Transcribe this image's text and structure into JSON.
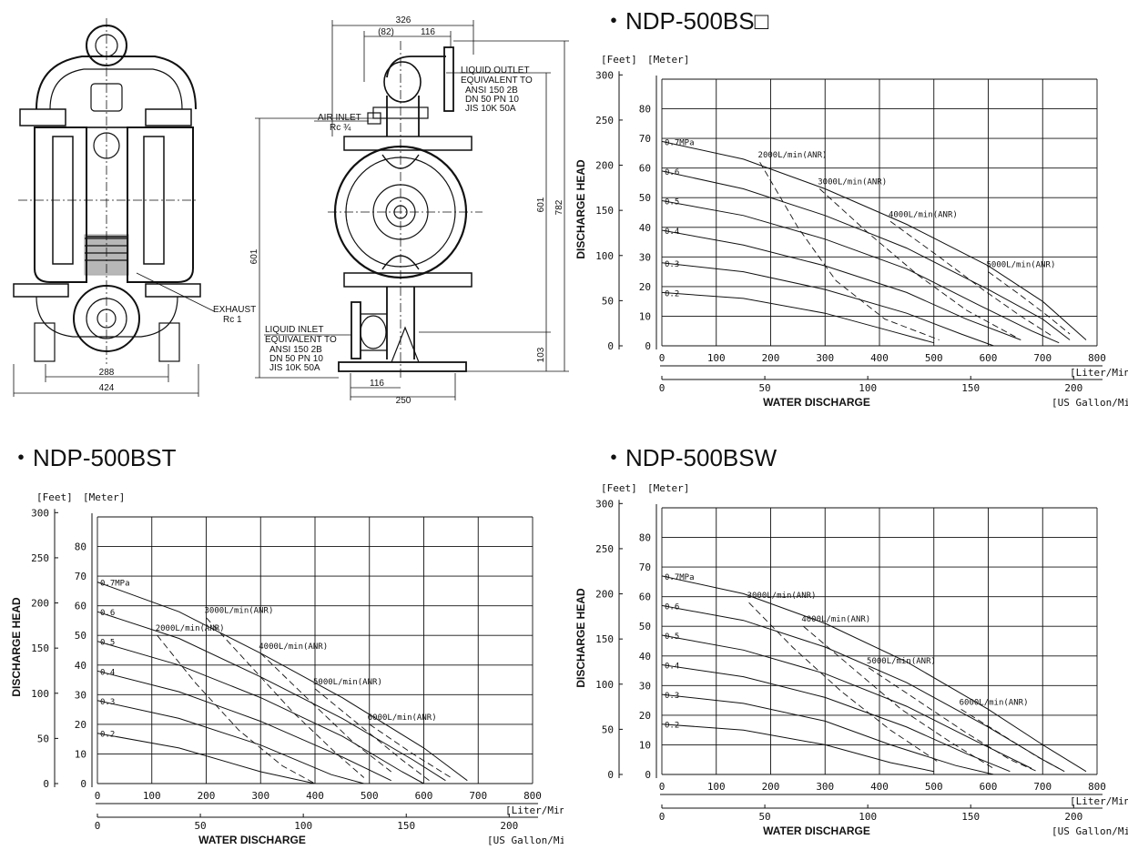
{
  "titles": {
    "bs": "・NDP-500BS□",
    "bst": "・NDP-500BST",
    "bsw": "・NDP-500BSW"
  },
  "drawing": {
    "front": {
      "dim_288": "288",
      "dim_424": "424"
    },
    "side": {
      "dim_326": "326",
      "dim_82": "(82)",
      "dim_116_top": "116",
      "dim_601_left": "601",
      "dim_601_right": "601",
      "dim_782": "782",
      "dim_103": "103",
      "dim_116_bottom": "116",
      "dim_250": "250",
      "air_inlet": "AIR INLET",
      "air_inlet_size": "Rc ¾",
      "exhaust": "EXHAUST",
      "exhaust_size": "Rc 1",
      "outlet": [
        "LIQUID OUTLET",
        "EQUIVALENT TO",
        "ANSI 150 2B",
        "DN 50 PN 10",
        "JIS 10K 50A"
      ],
      "inlet": [
        "LIQUID INLET",
        "EQUIVALENT TO",
        "ANSI 150 2B",
        "DN 50 PN 10",
        "JIS 10K 50A"
      ]
    }
  },
  "common": {
    "feet": "[Feet]",
    "meter": "[Meter]",
    "ylabel": "DISCHARGE HEAD",
    "xlabel": "WATER DISCHARGE",
    "liter_unit": "[Liter/Min]",
    "gallon_unit": "[US Gallon/Min]",
    "feet_ticks": [
      "300",
      "250",
      "200",
      "150",
      "100",
      "50",
      "0"
    ],
    "meter_ticks": [
      "80",
      "70",
      "60",
      "50",
      "40",
      "30",
      "20",
      "10",
      "0"
    ],
    "liter_ticks": [
      "0",
      "100",
      "200",
      "300",
      "400",
      "500",
      "600",
      "700",
      "800"
    ],
    "gallon_ticks": [
      "0",
      "50",
      "100",
      "150",
      "200"
    ]
  },
  "chart_data": [
    {
      "type": "line",
      "title": "NDP-500BS□",
      "xlabel": "WATER DISCHARGE",
      "ylabel": "DISCHARGE HEAD",
      "x_unit": "Liter/Min",
      "y_unit": "Meter",
      "xlim": [
        0,
        800
      ],
      "ylim": [
        0,
        90
      ],
      "grid": true,
      "series": [
        {
          "name": "0.7MPa",
          "points": [
            [
              0,
              69
            ],
            [
              150,
              63
            ],
            [
              300,
              53
            ],
            [
              450,
              41
            ],
            [
              600,
              27
            ],
            [
              700,
              15
            ],
            [
              780,
              2
            ]
          ]
        },
        {
          "name": "0.6",
          "points": [
            [
              0,
              59
            ],
            [
              150,
              53
            ],
            [
              300,
              44
            ],
            [
              450,
              33
            ],
            [
              600,
              19
            ],
            [
              700,
              9
            ],
            [
              750,
              2
            ]
          ]
        },
        {
          "name": "0.5",
          "points": [
            [
              0,
              49
            ],
            [
              150,
              44
            ],
            [
              300,
              36
            ],
            [
              450,
              26
            ],
            [
              580,
              14
            ],
            [
              680,
              5
            ],
            [
              730,
              1
            ]
          ]
        },
        {
          "name": "0.4",
          "points": [
            [
              0,
              39
            ],
            [
              150,
              34
            ],
            [
              300,
              27
            ],
            [
              450,
              18
            ],
            [
              560,
              9
            ],
            [
              660,
              2
            ]
          ]
        },
        {
          "name": "0.3",
          "points": [
            [
              0,
              28
            ],
            [
              150,
              25
            ],
            [
              300,
              19
            ],
            [
              450,
              11
            ],
            [
              550,
              4
            ],
            [
              610,
              0
            ]
          ]
        },
        {
          "name": "0.2",
          "points": [
            [
              0,
              18
            ],
            [
              150,
              16
            ],
            [
              300,
              11
            ],
            [
              420,
              5
            ],
            [
              500,
              1
            ]
          ]
        }
      ],
      "air_consumption": [
        {
          "name": "2000L/min(ANR)",
          "points": [
            [
              180,
              62
            ],
            [
              250,
              40
            ],
            [
              320,
              22
            ],
            [
              410,
              9
            ],
            [
              510,
              2
            ]
          ]
        },
        {
          "name": "3000L/min(ANR)",
          "points": [
            [
              290,
              53
            ],
            [
              380,
              38
            ],
            [
              470,
              24
            ],
            [
              560,
              12
            ],
            [
              650,
              3
            ]
          ]
        },
        {
          "name": "4000L/min(ANR)",
          "points": [
            [
              420,
              42
            ],
            [
              510,
              30
            ],
            [
              590,
              19
            ],
            [
              660,
              10
            ],
            [
              720,
              3
            ]
          ]
        },
        {
          "name": "5000L/min(ANR)",
          "points": [
            [
              600,
              25
            ],
            [
              660,
              17
            ],
            [
              710,
              10
            ],
            [
              750,
              4
            ]
          ]
        }
      ]
    },
    {
      "type": "line",
      "title": "NDP-500BST",
      "xlabel": "WATER DISCHARGE",
      "ylabel": "DISCHARGE HEAD",
      "x_unit": "Liter/Min",
      "y_unit": "Meter",
      "xlim": [
        0,
        800
      ],
      "ylim": [
        0,
        90
      ],
      "grid": true,
      "series": [
        {
          "name": "0.7MPa",
          "points": [
            [
              0,
              68
            ],
            [
              150,
              58
            ],
            [
              300,
              44
            ],
            [
              450,
              29
            ],
            [
              600,
              12
            ],
            [
              680,
              1
            ]
          ]
        },
        {
          "name": "0.6",
          "points": [
            [
              0,
              58
            ],
            [
              150,
              49
            ],
            [
              300,
              36
            ],
            [
              450,
              22
            ],
            [
              580,
              8
            ],
            [
              640,
              1
            ]
          ]
        },
        {
          "name": "0.5",
          "points": [
            [
              0,
              48
            ],
            [
              150,
              40
            ],
            [
              300,
              29
            ],
            [
              450,
              16
            ],
            [
              560,
              4
            ],
            [
              600,
              0
            ]
          ]
        },
        {
          "name": "0.4",
          "points": [
            [
              0,
              38
            ],
            [
              150,
              31
            ],
            [
              300,
              21
            ],
            [
              450,
              9
            ],
            [
              540,
              1
            ]
          ]
        },
        {
          "name": "0.3",
          "points": [
            [
              0,
              28
            ],
            [
              150,
              22
            ],
            [
              300,
              13
            ],
            [
              430,
              3
            ],
            [
              490,
              0
            ]
          ]
        },
        {
          "name": "0.2",
          "points": [
            [
              0,
              17
            ],
            [
              150,
              12
            ],
            [
              300,
              4
            ],
            [
              400,
              0
            ]
          ]
        }
      ],
      "air_consumption": [
        {
          "name": "2000L/min(ANR)",
          "points": [
            [
              110,
              50
            ],
            [
              180,
              34
            ],
            [
              260,
              18
            ],
            [
              340,
              6
            ],
            [
              400,
              0
            ]
          ]
        },
        {
          "name": "3000L/min(ANR)",
          "points": [
            [
              200,
              56
            ],
            [
              280,
              40
            ],
            [
              360,
              24
            ],
            [
              440,
              10
            ],
            [
              490,
              2
            ]
          ]
        },
        {
          "name": "4000L/min(ANR)",
          "points": [
            [
              300,
              44
            ],
            [
              390,
              28
            ],
            [
              470,
              14
            ],
            [
              540,
              4
            ]
          ]
        },
        {
          "name": "5000L/min(ANR)",
          "points": [
            [
              400,
              32
            ],
            [
              480,
              20
            ],
            [
              560,
              8
            ],
            [
              610,
              1
            ]
          ]
        },
        {
          "name": "6000L/min(ANR)",
          "points": [
            [
              500,
              20
            ],
            [
              580,
              10
            ],
            [
              650,
              2
            ]
          ]
        }
      ]
    },
    {
      "type": "line",
      "title": "NDP-500BSW",
      "xlabel": "WATER DISCHARGE",
      "ylabel": "DISCHARGE HEAD",
      "x_unit": "Liter/Min",
      "y_unit": "Meter",
      "xlim": [
        0,
        800
      ],
      "ylim": [
        0,
        90
      ],
      "grid": true,
      "series": [
        {
          "name": "0.7MPa",
          "points": [
            [
              0,
              67
            ],
            [
              150,
              61
            ],
            [
              300,
              51
            ],
            [
              450,
              38
            ],
            [
              600,
              22
            ],
            [
              700,
              10
            ],
            [
              780,
              1
            ]
          ]
        },
        {
          "name": "0.6",
          "points": [
            [
              0,
              57
            ],
            [
              150,
              52
            ],
            [
              300,
              43
            ],
            [
              450,
              31
            ],
            [
              600,
              16
            ],
            [
              700,
              5
            ],
            [
              740,
              1
            ]
          ]
        },
        {
          "name": "0.5",
          "points": [
            [
              0,
              47
            ],
            [
              150,
              42
            ],
            [
              300,
              34
            ],
            [
              450,
              23
            ],
            [
              580,
              11
            ],
            [
              680,
              2
            ]
          ]
        },
        {
          "name": "0.4",
          "points": [
            [
              0,
              37
            ],
            [
              150,
              33
            ],
            [
              300,
              26
            ],
            [
              450,
              16
            ],
            [
              560,
              7
            ],
            [
              640,
              1
            ]
          ]
        },
        {
          "name": "0.3",
          "points": [
            [
              0,
              27
            ],
            [
              150,
              24
            ],
            [
              300,
              18
            ],
            [
              420,
              10
            ],
            [
              540,
              3
            ],
            [
              610,
              0
            ]
          ]
        },
        {
          "name": "0.2",
          "points": [
            [
              0,
              17
            ],
            [
              150,
              15
            ],
            [
              300,
              10
            ],
            [
              420,
              4
            ],
            [
              500,
              1
            ]
          ]
        }
      ],
      "air_consumption": [
        {
          "name": "3000L/min(ANR)",
          "points": [
            [
              160,
              58
            ],
            [
              240,
              43
            ],
            [
              330,
              28
            ],
            [
              420,
              15
            ],
            [
              510,
              4
            ]
          ]
        },
        {
          "name": "4000L/min(ANR)",
          "points": [
            [
              260,
              50
            ],
            [
              350,
              36
            ],
            [
              440,
              22
            ],
            [
              530,
              11
            ],
            [
              610,
              2
            ]
          ]
        },
        {
          "name": "5000L/min(ANR)",
          "points": [
            [
              380,
              36
            ],
            [
              470,
              25
            ],
            [
              560,
              14
            ],
            [
              640,
              5
            ],
            [
              690,
              1
            ]
          ]
        },
        {
          "name": "6000L/min(ANR)",
          "points": [
            [
              550,
              22
            ],
            [
              620,
              14
            ],
            [
              690,
              6
            ],
            [
              730,
              2
            ]
          ]
        }
      ]
    }
  ]
}
